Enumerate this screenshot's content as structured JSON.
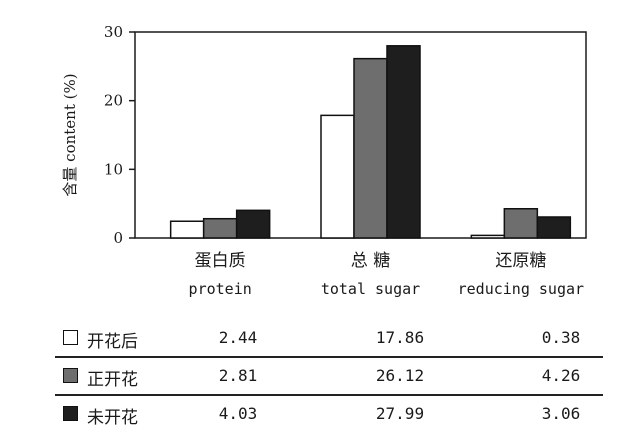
{
  "chart_data": {
    "type": "bar",
    "ylabel": "含量 content (%)",
    "ylim": [
      0,
      30
    ],
    "yticks": [
      0,
      10,
      20,
      30
    ],
    "grid": false,
    "categories": [
      {
        "cn": "蛋白质",
        "en": "protein"
      },
      {
        "cn": "总 糖",
        "en": "total sugar"
      },
      {
        "cn": "还原糖",
        "en": "reducing sugar"
      }
    ],
    "series": [
      {
        "name": "开花后",
        "color": "#ffffff",
        "values": [
          2.44,
          17.86,
          0.38
        ],
        "labels": [
          "2.44",
          "17.86",
          "0.38"
        ]
      },
      {
        "name": "正开花",
        "color": "#6e6e6e",
        "values": [
          2.81,
          26.12,
          4.26
        ],
        "labels": [
          "2.81",
          "26.12",
          "4.26"
        ]
      },
      {
        "name": "未开花",
        "color": "#1e1e1e",
        "values": [
          4.03,
          27.99,
          3.06
        ],
        "labels": [
          "4.03",
          "27.99",
          "3.06"
        ]
      }
    ]
  }
}
